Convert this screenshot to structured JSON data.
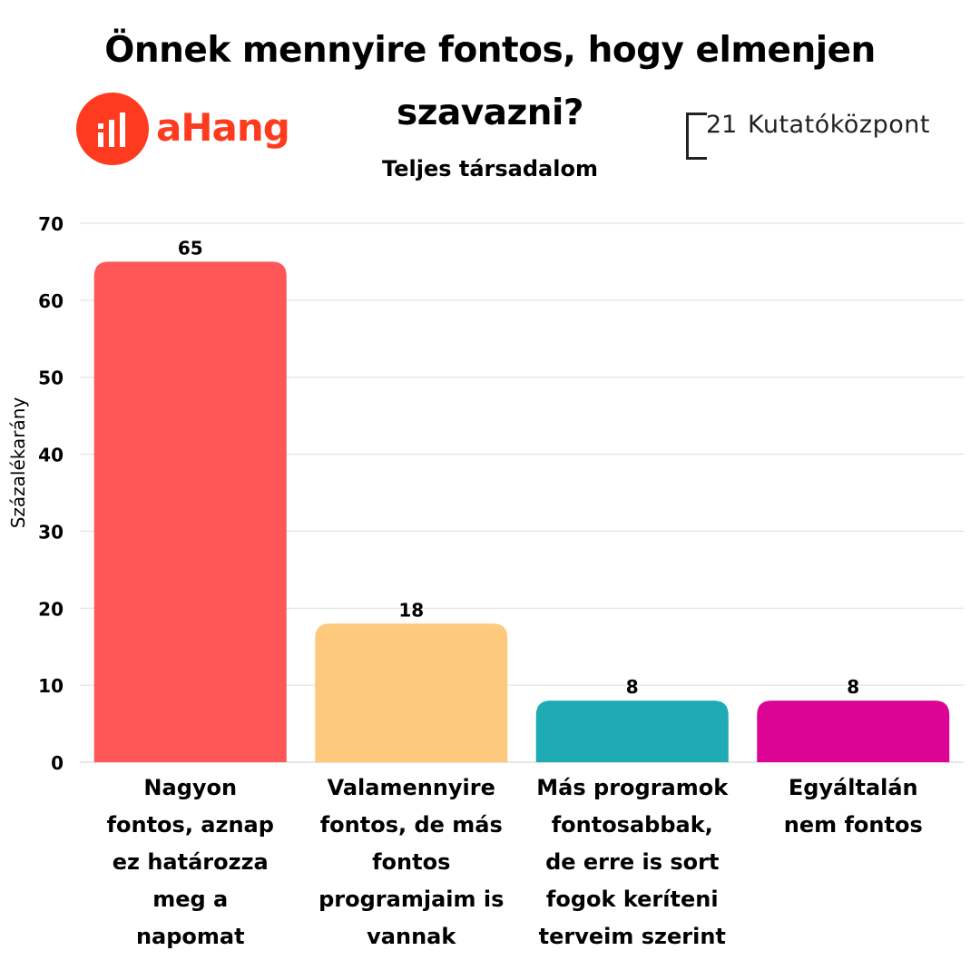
{
  "title_line1": "Önnek mennyire fontos, hogy elmenjen",
  "title_line2": "szavazni?",
  "subtitle": "Teljes társadalom",
  "logos": {
    "left_word": "aHang",
    "right_number": "21",
    "right_name": "Kutatóközpont"
  },
  "colors": {
    "ahang": "#ff3b1f",
    "bars": [
      "#ff5757",
      "#fdc97d",
      "#1fabb3",
      "#dc0495"
    ]
  },
  "chart_data": {
    "type": "bar",
    "title": "Önnek mennyire fontos, hogy elmenjen szavazni?",
    "subtitle": "Teljes társadalom",
    "ylabel": "Százalékarány",
    "xlabel": "",
    "ylim": [
      0,
      70
    ],
    "yticks": [
      0,
      10,
      20,
      30,
      40,
      50,
      60,
      70
    ],
    "grid": true,
    "categories": [
      "Nagyon fontos, aznap ez határozza meg a napomat",
      "Valamennyire fontos, de más fontos programjaim is vannak",
      "Más programok fontosabbak, de erre is sort fogok keríteni terveim szerint",
      "Egyáltalán nem fontos"
    ],
    "category_lines": [
      [
        "Nagyon",
        "fontos, aznap",
        "ez határozza",
        "meg a",
        "napomat"
      ],
      [
        "Valamennyire",
        "fontos, de más",
        "fontos",
        "programjaim is",
        "vannak"
      ],
      [
        "Más programok",
        "fontosabbak,",
        "de erre is sort",
        "fogok keríteni",
        "terveim szerint"
      ],
      [
        "Egyáltalán",
        "nem fontos"
      ]
    ],
    "values": [
      65,
      18,
      8,
      8
    ]
  }
}
